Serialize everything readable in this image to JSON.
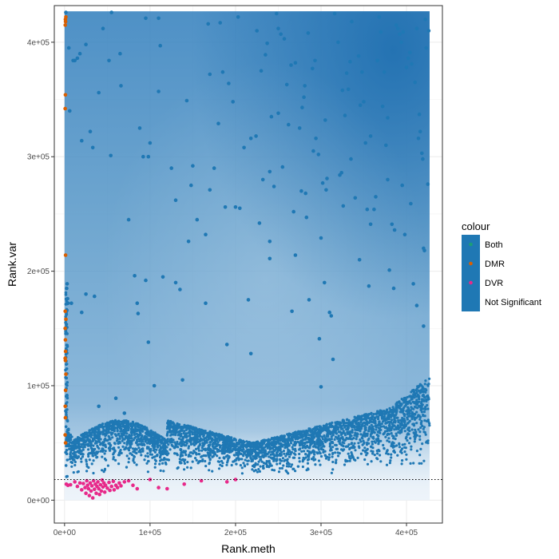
{
  "chart_data": {
    "type": "scatter",
    "title": "",
    "xlabel": "Rank.meth",
    "ylabel": "Rank.var",
    "xlim": [
      -12000,
      442000
    ],
    "ylim": [
      -20000,
      432000
    ],
    "x_ticks": [
      {
        "value": 0,
        "label": "0e+00"
      },
      {
        "value": 100000,
        "label": "1e+05"
      },
      {
        "value": 200000,
        "label": "2e+05"
      },
      {
        "value": 300000,
        "label": "3e+05"
      },
      {
        "value": 400000,
        "label": "4e+05"
      }
    ],
    "y_ticks": [
      {
        "value": 0,
        "label": "0e+00"
      },
      {
        "value": 100000,
        "label": "1e+05"
      },
      {
        "value": 200000,
        "label": "2e+05"
      },
      {
        "value": 300000,
        "label": "3e+05"
      },
      {
        "value": 400000,
        "label": "4e+05"
      }
    ],
    "grid": true,
    "density_background": true,
    "density_extent": {
      "x": [
        0,
        427000
      ],
      "y": [
        0,
        427000
      ]
    },
    "reference_line": {
      "y": 18000,
      "style": "dotted"
    },
    "legend": {
      "title": "colour",
      "position": "right",
      "entries": [
        {
          "label": "Both",
          "color": "#1b9e77"
        },
        {
          "label": "DMR",
          "color": "#d95f02"
        },
        {
          "label": "DVR",
          "color": "#e7298a"
        },
        {
          "label": "Not Significant",
          "color": "#1f78b4"
        }
      ]
    },
    "series": [
      {
        "name": "DMR",
        "color": "#d95f02",
        "points": [
          [
            1000,
            420000
          ],
          [
            1200,
            418000
          ],
          [
            800,
            415000
          ],
          [
            1500,
            422000
          ],
          [
            1000,
            354000
          ],
          [
            700,
            342000
          ],
          [
            1200,
            214000
          ],
          [
            800,
            165000
          ],
          [
            1500,
            158000
          ],
          [
            700,
            150000
          ],
          [
            1000,
            140000
          ],
          [
            1200,
            130000
          ],
          [
            700,
            124000
          ],
          [
            1000,
            122000
          ],
          [
            1500,
            110000
          ],
          [
            1200,
            96000
          ],
          [
            800,
            82000
          ],
          [
            1000,
            72000
          ],
          [
            700,
            57000
          ],
          [
            1200,
            50000
          ]
        ]
      },
      {
        "name": "DVR",
        "color": "#e7298a",
        "points": [
          [
            2000,
            14000
          ],
          [
            4000,
            13000
          ],
          [
            7000,
            13500
          ],
          [
            12000,
            16000
          ],
          [
            15000,
            12000
          ],
          [
            18000,
            15000
          ],
          [
            20000,
            9000
          ],
          [
            22000,
            14500
          ],
          [
            24000,
            11000
          ],
          [
            25000,
            6000
          ],
          [
            26000,
            17000
          ],
          [
            27000,
            13000
          ],
          [
            28000,
            10000
          ],
          [
            29000,
            4000
          ],
          [
            30000,
            15000
          ],
          [
            31000,
            8000
          ],
          [
            32000,
            12500
          ],
          [
            33000,
            2000
          ],
          [
            34000,
            17000
          ],
          [
            35000,
            9500
          ],
          [
            36000,
            14000
          ],
          [
            37000,
            6000
          ],
          [
            38000,
            12000
          ],
          [
            39000,
            16000
          ],
          [
            40000,
            10000
          ],
          [
            41000,
            5000
          ],
          [
            42000,
            13500
          ],
          [
            43000,
            8000
          ],
          [
            44000,
            17500
          ],
          [
            45000,
            11500
          ],
          [
            46000,
            15000
          ],
          [
            47000,
            7000
          ],
          [
            48000,
            13000
          ],
          [
            50000,
            10500
          ],
          [
            52000,
            15500
          ],
          [
            53000,
            8500
          ],
          [
            55000,
            12000
          ],
          [
            57000,
            16500
          ],
          [
            58000,
            9000
          ],
          [
            60000,
            13000
          ],
          [
            62000,
            11000
          ],
          [
            64000,
            15000
          ],
          [
            66000,
            12500
          ],
          [
            70000,
            16000
          ],
          [
            75000,
            17000
          ],
          [
            80000,
            13000
          ],
          [
            85000,
            10000
          ],
          [
            100000,
            18000
          ],
          [
            110000,
            11000
          ],
          [
            120000,
            10000
          ],
          [
            140000,
            14000
          ],
          [
            160000,
            17000
          ],
          [
            190000,
            16000
          ],
          [
            200000,
            18000
          ]
        ]
      },
      {
        "name": "Not Significant",
        "color": "#1f78b4",
        "points": [
          [
            1500,
            426000
          ],
          [
            5000,
            395000
          ],
          [
            12000,
            384000
          ],
          [
            15000,
            386000
          ],
          [
            18000,
            390000
          ],
          [
            25000,
            398000
          ],
          [
            30000,
            322000
          ],
          [
            33000,
            308000
          ],
          [
            20000,
            314000
          ],
          [
            40000,
            356000
          ],
          [
            45000,
            412000
          ],
          [
            52000,
            384000
          ],
          [
            55000,
            426000
          ],
          [
            54000,
            301000
          ],
          [
            65000,
            390000
          ],
          [
            66000,
            362000
          ],
          [
            75000,
            245000
          ],
          [
            82000,
            196000
          ],
          [
            85000,
            172000
          ],
          [
            86000,
            163000
          ],
          [
            95000,
            421000
          ],
          [
            100000,
            312000
          ],
          [
            95000,
            192000
          ],
          [
            98000,
            138000
          ],
          [
            105000,
            100000
          ],
          [
            110000,
            357000
          ],
          [
            112000,
            397000
          ],
          [
            115000,
            195000
          ],
          [
            130000,
            190000
          ],
          [
            135000,
            184000
          ],
          [
            138000,
            105000
          ],
          [
            143000,
            349000
          ],
          [
            148000,
            275000
          ],
          [
            165000,
            232000
          ],
          [
            165000,
            172000
          ],
          [
            168000,
            416000
          ],
          [
            170000,
            271000
          ],
          [
            170000,
            372000
          ],
          [
            180000,
            329000
          ],
          [
            182000,
            417000
          ],
          [
            185000,
            374000
          ],
          [
            188000,
            256000
          ],
          [
            190000,
            136000
          ],
          [
            192000,
            364000
          ],
          [
            197000,
            348000
          ],
          [
            200000,
            256000
          ],
          [
            203000,
            422000
          ],
          [
            210000,
            308000
          ],
          [
            215000,
            175000
          ],
          [
            218000,
            128000
          ],
          [
            218000,
            316000
          ],
          [
            225000,
            410000
          ],
          [
            230000,
            375000
          ],
          [
            235000,
            389000
          ],
          [
            237000,
            399000
          ],
          [
            240000,
            287000
          ],
          [
            242000,
            335000
          ],
          [
            245000,
            274000
          ],
          [
            240000,
            226000
          ],
          [
            240000,
            211000
          ],
          [
            248000,
            425000
          ],
          [
            250000,
            338000
          ],
          [
            250000,
            412000
          ],
          [
            253000,
            407000
          ],
          [
            257000,
            403000
          ],
          [
            260000,
            363000
          ],
          [
            265000,
            380000
          ],
          [
            266000,
            165000
          ],
          [
            268000,
            252000
          ],
          [
            270000,
            382000
          ],
          [
            270000,
            214000
          ],
          [
            275000,
            325000
          ],
          [
            277000,
            270000
          ],
          [
            278000,
            343000
          ],
          [
            280000,
            352000
          ],
          [
            281000,
            362000
          ],
          [
            282000,
            268000
          ],
          [
            283000,
            247000
          ],
          [
            285000,
            408000
          ],
          [
            290000,
            377000
          ],
          [
            293000,
            384000
          ],
          [
            294000,
            316000
          ],
          [
            297000,
            302000
          ],
          [
            298000,
            141000
          ],
          [
            300000,
            99000
          ],
          [
            300000,
            229000
          ],
          [
            302000,
            277000
          ],
          [
            304000,
            190000
          ],
          [
            306000,
            271000
          ],
          [
            307000,
            281000
          ],
          [
            310000,
            164000
          ],
          [
            312000,
            161000
          ],
          [
            314000,
            123000
          ],
          [
            316000,
            425000
          ],
          [
            320000,
            400000
          ],
          [
            322000,
            284000
          ],
          [
            324000,
            286000
          ],
          [
            325000,
            358000
          ],
          [
            326000,
            257000
          ],
          [
            328000,
            336000
          ],
          [
            330000,
            373000
          ],
          [
            332000,
            359000
          ],
          [
            334000,
            383000
          ],
          [
            336000,
            418000
          ],
          [
            340000,
            264000
          ],
          [
            344000,
            388000
          ],
          [
            346000,
            345000
          ],
          [
            348000,
            374000
          ],
          [
            350000,
            348000
          ],
          [
            352000,
            312000
          ],
          [
            354000,
            254000
          ],
          [
            356000,
            187000
          ],
          [
            358000,
            241000
          ],
          [
            362000,
            254000
          ],
          [
            364000,
            265000
          ],
          [
            366000,
            384000
          ],
          [
            368000,
            422000
          ],
          [
            370000,
            409000
          ],
          [
            372000,
            344000
          ],
          [
            374000,
            374000
          ],
          [
            376000,
            310000
          ],
          [
            378000,
            280000
          ],
          [
            380000,
            201000
          ],
          [
            383000,
            241000
          ],
          [
            385000,
            185000
          ],
          [
            386000,
            236000
          ],
          [
            388000,
            415000
          ],
          [
            390000,
            412000
          ],
          [
            392000,
            407000
          ],
          [
            394000,
            400000
          ],
          [
            396000,
            409000
          ],
          [
            398000,
            232000
          ],
          [
            400000,
            378000
          ],
          [
            402000,
            386000
          ],
          [
            404000,
            391000
          ],
          [
            406000,
            381000
          ],
          [
            408000,
            189000
          ],
          [
            410000,
            365000
          ],
          [
            412000,
            412000
          ],
          [
            414000,
            316000
          ],
          [
            415000,
            337000
          ],
          [
            416000,
            322000
          ],
          [
            418000,
            303000
          ],
          [
            419000,
            298000
          ],
          [
            420000,
            220000
          ],
          [
            421000,
            218000
          ],
          [
            422000,
            420000
          ],
          [
            423000,
            395000
          ],
          [
            425000,
            276000
          ],
          [
            426000,
            410000
          ],
          [
            3000,
            189000
          ],
          [
            4000,
            172000
          ],
          [
            2500,
            185000
          ],
          [
            3500,
            176000
          ],
          [
            8000,
            172000
          ],
          [
            6000,
            340000
          ],
          [
            10000,
            384000
          ],
          [
            25000,
            180000
          ],
          [
            20000,
            164000
          ],
          [
            35000,
            178000
          ],
          [
            40000,
            82000
          ],
          [
            60000,
            89000
          ],
          [
            70000,
            76000
          ],
          [
            88000,
            325000
          ],
          [
            92000,
            300000
          ],
          [
            98000,
            300000
          ],
          [
            110000,
            421000
          ],
          [
            125000,
            290000
          ],
          [
            130000,
            262000
          ],
          [
            145000,
            226000
          ],
          [
            150000,
            292000
          ],
          [
            155000,
            245000
          ],
          [
            175000,
            290000
          ],
          [
            205000,
            255000
          ],
          [
            224000,
            318000
          ],
          [
            228000,
            242000
          ],
          [
            232000,
            280000
          ],
          [
            255000,
            291000
          ],
          [
            262000,
            328000
          ],
          [
            286000,
            175000
          ],
          [
            291000,
            305000
          ],
          [
            305000,
            332000
          ],
          [
            335000,
            298000
          ],
          [
            345000,
            210000
          ],
          [
            358000,
            318000
          ],
          [
            378000,
            334000
          ],
          [
            395000,
            275000
          ],
          [
            405000,
            259000
          ],
          [
            412000,
            170000
          ],
          [
            420000,
            152000
          ]
        ]
      }
    ]
  }
}
